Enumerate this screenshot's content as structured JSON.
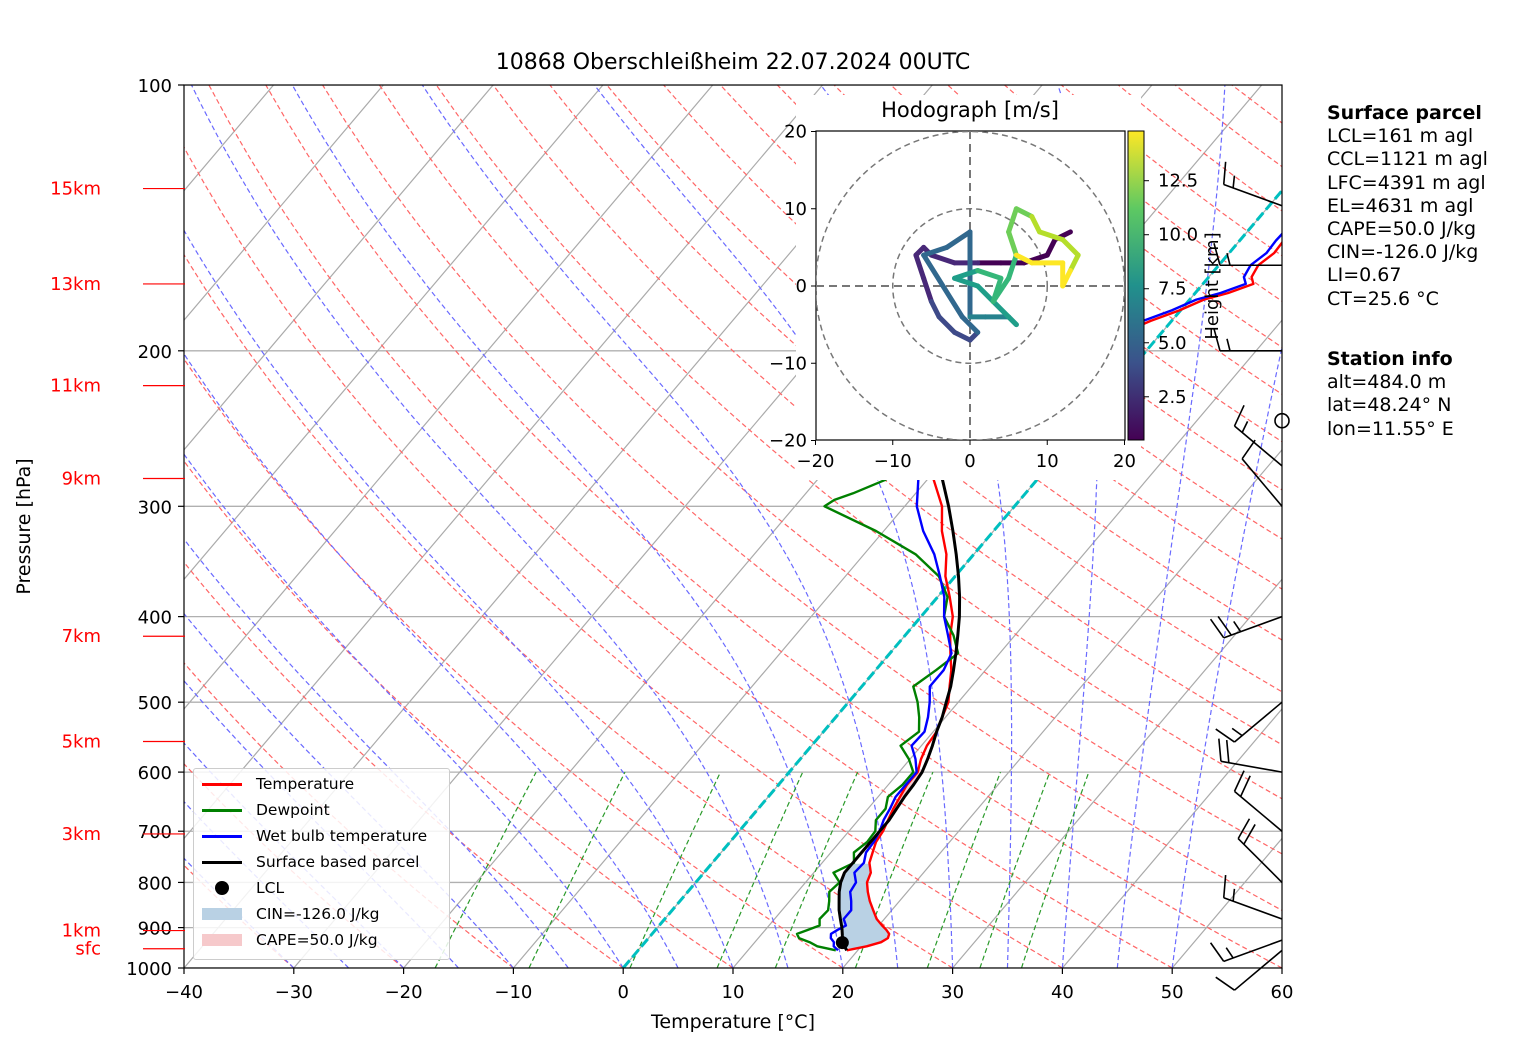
{
  "title": "10868 Oberschleißheim 22.07.2024 00UTC",
  "chart_data": [
    {
      "type": "line",
      "name": "skew-T log-p diagram",
      "xlabel": "Temperature [°C]",
      "ylabel": "Pressure [hPa]",
      "xlim": [
        -40,
        60
      ],
      "ylim": [
        1000,
        100
      ],
      "y_scale": "log",
      "x_ticks": [
        -40,
        -30,
        -20,
        -10,
        0,
        10,
        20,
        30,
        40,
        50,
        60
      ],
      "y_ticks": [
        1000,
        900,
        800,
        700,
        600,
        500,
        400,
        300,
        200,
        100
      ],
      "height_labels": [
        {
          "label": "15km",
          "p": 131
        },
        {
          "label": "13km",
          "p": 168
        },
        {
          "label": "11km",
          "p": 219
        },
        {
          "label": "9km",
          "p": 279
        },
        {
          "label": "7km",
          "p": 421
        },
        {
          "label": "5km",
          "p": 554
        },
        {
          "label": "3km",
          "p": 705
        },
        {
          "label": "1km",
          "p": 907
        },
        {
          "label": "sfc",
          "p": 951
        }
      ],
      "series": [
        {
          "name": "Temperature",
          "color": "#ff0000",
          "p": [
            955,
            945,
            935,
            925,
            915,
            905,
            895,
            880,
            860,
            840,
            820,
            800,
            780,
            760,
            740,
            720,
            700,
            680,
            660,
            640,
            620,
            600,
            580,
            560,
            540,
            520,
            500,
            480,
            460,
            440,
            420,
            400,
            380,
            360,
            340,
            320,
            300,
            280,
            260,
            240,
            226,
            220,
            214,
            210,
            205,
            200,
            195,
            190,
            185,
            180,
            175,
            172,
            168,
            165,
            160,
            155,
            150,
            145,
            140,
            136,
            133,
            130
          ],
          "t": [
            19.0,
            20.5,
            21.5,
            21.8,
            21.6,
            21.0,
            20.3,
            19.3,
            18.3,
            17.3,
            16.4,
            15.6,
            15.2,
            14.3,
            13.8,
            13.3,
            13.1,
            12.7,
            12.3,
            12.0,
            11.7,
            11.7,
            11.0,
            10.5,
            10.3,
            9.7,
            9.1,
            8.0,
            6.9,
            5.5,
            4.1,
            2.9,
            1.1,
            -0.9,
            -2.5,
            -4.7,
            -6.6,
            -9.4,
            -12.4,
            -14.9,
            -16.5,
            -9.7,
            -8.8,
            -7.9,
            -6.4,
            -5.6,
            -4.1,
            -3.3,
            -1.9,
            -0.1,
            1.3,
            3.0,
            4.6,
            3.9,
            3.6,
            4.1,
            4.0,
            4.1,
            4.6,
            5.1,
            6.5,
            7.6
          ]
        },
        {
          "name": "Dewpoint",
          "color": "#008000",
          "p": [
            955,
            945,
            935,
            925,
            915,
            905,
            895,
            880,
            860,
            840,
            820,
            800,
            780,
            760,
            740,
            720,
            700,
            680,
            660,
            640,
            620,
            600,
            580,
            560,
            540,
            520,
            500,
            480,
            460,
            440,
            420,
            400,
            380,
            360,
            340,
            320,
            300,
            295,
            290,
            280,
            270,
            260,
            250,
            240,
            230,
            220,
            214,
            210,
            205,
            200,
            195,
            190,
            185,
            180,
            175,
            170,
            168,
            165,
            160,
            155,
            150,
            145,
            140,
            135,
            130
          ],
          "t": [
            18.0,
            16.0,
            15.0,
            13.7,
            13.2,
            13.9,
            14.6,
            14.1,
            14.2,
            13.6,
            12.9,
            13.1,
            11.8,
            12.9,
            12.1,
            12.5,
            12.4,
            11.6,
            11.6,
            10.9,
            11.3,
            11.3,
            9.9,
            8.1,
            8.7,
            7.6,
            6.3,
            4.7,
            5.5,
            6.2,
            4.4,
            2.1,
            0.9,
            -1.5,
            -5.3,
            -10.7,
            -17.3,
            -16.9,
            -15.7,
            -13.8,
            -12.9,
            -13.5,
            -13.7,
            -14.3,
            -14.1,
            -15.1,
            -16.9,
            -17.7,
            -24.7,
            -20.8,
            -21.3,
            -20.5,
            -19.3,
            -23.3,
            -21.4,
            -30.1,
            -29.2,
            -30.1,
            -31.2,
            -29.6,
            -29.8,
            -28.8,
            -27.2,
            -26.5,
            -25.4
          ]
        },
        {
          "name": "Wet bulb temperature",
          "color": "#0000ff",
          "p": [
            955,
            945,
            935,
            925,
            915,
            905,
            895,
            880,
            860,
            840,
            820,
            800,
            780,
            760,
            740,
            720,
            700,
            680,
            660,
            640,
            620,
            600,
            580,
            560,
            540,
            520,
            500,
            480,
            460,
            440,
            420,
            400,
            380,
            360,
            340,
            320,
            300,
            280,
            260,
            240,
            226,
            220,
            214,
            210,
            205,
            200,
            195,
            190,
            185,
            180,
            175,
            172,
            168,
            165,
            160,
            155,
            150,
            145,
            140,
            136,
            133,
            130
          ],
          "t": [
            18.2,
            17.5,
            17.2,
            16.6,
            16.3,
            16.6,
            17.0,
            16.3,
            16.3,
            15.6,
            14.8,
            14.6,
            13.7,
            13.8,
            13.2,
            13.1,
            12.8,
            12.3,
            12.0,
            11.6,
            11.6,
            11.6,
            10.5,
            9.1,
            9.2,
            8.4,
            7.4,
            6.2,
            6.2,
            5.6,
            3.9,
            2.1,
            0.6,
            -1.4,
            -3.6,
            -6.4,
            -8.9,
            -10.8,
            -13.0,
            -15.3,
            -16.7,
            -10.3,
            -9.4,
            -8.6,
            -7.1,
            -6.3,
            -4.8,
            -4.0,
            -2.6,
            -0.8,
            0.6,
            2.3,
            3.9,
            3.2,
            2.9,
            3.4,
            3.3,
            3.4,
            3.9,
            4.4,
            5.8,
            6.9
          ]
        },
        {
          "name": "Surface based parcel",
          "color": "#000000",
          "p": [
            955,
            940,
            920,
            900,
            880,
            860,
            840,
            820,
            800,
            780,
            760,
            740,
            720,
            700,
            680,
            660,
            640,
            620,
            600,
            580,
            560,
            540,
            520,
            500,
            480,
            460,
            440,
            420,
            400,
            380,
            360,
            340,
            320,
            300,
            280,
            260,
            240,
            220,
            200,
            180,
            160,
            140,
            130
          ],
          "t": [
            19.0,
            18.2,
            17.5,
            16.8,
            16.0,
            15.2,
            14.5,
            13.8,
            13.2,
            12.8,
            12.8,
            12.8,
            12.8,
            12.8,
            12.8,
            12.6,
            12.4,
            12.3,
            12.1,
            11.6,
            11.0,
            10.3,
            9.7,
            8.9,
            8.1,
            7.1,
            6.0,
            4.8,
            3.5,
            2.0,
            0.3,
            -1.6,
            -3.7,
            -6.0,
            -8.6,
            -11.6,
            -15.0,
            -18.9,
            -23.0,
            -27.5,
            -32.5,
            -37.5,
            -40.0
          ]
        }
      ],
      "lcl": {
        "name": "LCL",
        "p": 936,
        "t": 18.0
      },
      "cin": {
        "label": "CIN=-126.0 J/kg",
        "value": -126.0
      },
      "cape": {
        "label": "CAPE=50.0 J/kg",
        "value": 50.0
      },
      "zero_isotherm_color": "#00bfbf",
      "winds": [
        {
          "p": 955,
          "speed_kt": 10,
          "dir": 230
        },
        {
          "p": 930,
          "speed_kt": 15,
          "dir": 250
        },
        {
          "p": 880,
          "speed_kt": 15,
          "dir": 290
        },
        {
          "p": 800,
          "speed_kt": 20,
          "dir": 315
        },
        {
          "p": 700,
          "speed_kt": 20,
          "dir": 310
        },
        {
          "p": 600,
          "speed_kt": 20,
          "dir": 280
        },
        {
          "p": 500,
          "speed_kt": 15,
          "dir": 230
        },
        {
          "p": 400,
          "speed_kt": 25,
          "dir": 250
        },
        {
          "p": 300,
          "speed_kt": 10,
          "dir": 320
        },
        {
          "p": 270,
          "speed_kt": 15,
          "dir": 310
        },
        {
          "p": 240,
          "speed_kt": 0,
          "dir": 0
        },
        {
          "p": 200,
          "speed_kt": 15,
          "dir": 270
        },
        {
          "p": 160,
          "speed_kt": 15,
          "dir": 270
        },
        {
          "p": 137,
          "speed_kt": 15,
          "dir": 290
        }
      ]
    },
    {
      "type": "line",
      "name": "hodograph",
      "title": "Hodograph [m/s]",
      "xlim": [
        -20,
        20
      ],
      "ylim": [
        -20,
        20
      ],
      "x_ticks": [
        -20,
        -10,
        0,
        10,
        20
      ],
      "y_ticks": [
        -20,
        -10,
        0,
        10,
        20
      ],
      "rings": [
        10,
        20
      ],
      "colorbar": {
        "label": "Height [km]",
        "ticks": [
          2.5,
          5.0,
          7.5,
          10.0,
          12.5
        ],
        "range": [
          0.5,
          14.8
        ]
      },
      "points": [
        {
          "u": 13.0,
          "v": 7.0,
          "h": 0.5
        },
        {
          "u": 11.0,
          "v": 6.0,
          "h": 0.8
        },
        {
          "u": 10.0,
          "v": 4.0,
          "h": 1.0
        },
        {
          "u": 7.0,
          "v": 3.0,
          "h": 1.3
        },
        {
          "u": 4.0,
          "v": 3.0,
          "h": 1.6
        },
        {
          "u": 1.0,
          "v": 3.0,
          "h": 1.9
        },
        {
          "u": -2.0,
          "v": 3.0,
          "h": 2.2
        },
        {
          "u": -5.0,
          "v": 4.0,
          "h": 2.5
        },
        {
          "u": -6.0,
          "v": 5.0,
          "h": 2.7
        },
        {
          "u": -7.0,
          "v": 4.0,
          "h": 2.9
        },
        {
          "u": -6.0,
          "v": 1.0,
          "h": 3.2
        },
        {
          "u": -5.0,
          "v": -2.0,
          "h": 3.5
        },
        {
          "u": -4.0,
          "v": -4.0,
          "h": 3.8
        },
        {
          "u": -2.0,
          "v": -6.0,
          "h": 4.1
        },
        {
          "u": 0.0,
          "v": -7.0,
          "h": 4.4
        },
        {
          "u": 1.0,
          "v": -6.0,
          "h": 4.7
        },
        {
          "u": -1.0,
          "v": -4.0,
          "h": 5.0
        },
        {
          "u": -6.0,
          "v": 4.0,
          "h": 5.3
        },
        {
          "u": -3.0,
          "v": 5.0,
          "h": 5.6
        },
        {
          "u": 0.0,
          "v": 7.0,
          "h": 5.9
        },
        {
          "u": 0.0,
          "v": -4.0,
          "h": 6.3
        },
        {
          "u": 2.0,
          "v": -4.0,
          "h": 6.7
        },
        {
          "u": 5.0,
          "v": -4.0,
          "h": 7.1
        },
        {
          "u": 6.0,
          "v": -5.0,
          "h": 7.5
        },
        {
          "u": 3.0,
          "v": -2.0,
          "h": 7.9
        },
        {
          "u": 1.0,
          "v": 0.0,
          "h": 8.3
        },
        {
          "u": -2.0,
          "v": 1.0,
          "h": 8.7
        },
        {
          "u": 1.0,
          "v": 2.0,
          "h": 9.1
        },
        {
          "u": 4.0,
          "v": 1.0,
          "h": 9.5
        },
        {
          "u": 3.0,
          "v": -2.0,
          "h": 9.9
        },
        {
          "u": 5.0,
          "v": 1.0,
          "h": 10.3
        },
        {
          "u": 6.0,
          "v": 4.0,
          "h": 10.7
        },
        {
          "u": 5.0,
          "v": 7.0,
          "h": 11.1
        },
        {
          "u": 6.0,
          "v": 10.0,
          "h": 11.5
        },
        {
          "u": 8.0,
          "v": 9.0,
          "h": 11.9
        },
        {
          "u": 9.0,
          "v": 7.0,
          "h": 12.3
        },
        {
          "u": 12.0,
          "v": 6.0,
          "h": 12.7
        },
        {
          "u": 14.0,
          "v": 4.0,
          "h": 13.1
        },
        {
          "u": 13.0,
          "v": 2.0,
          "h": 13.5
        },
        {
          "u": 12.0,
          "v": 0.0,
          "h": 13.9
        },
        {
          "u": 12.0,
          "v": 3.0,
          "h": 14.2
        },
        {
          "u": 8.0,
          "v": 3.0,
          "h": 14.5
        },
        {
          "u": 6.0,
          "v": 4.0,
          "h": 14.8
        }
      ]
    }
  ],
  "surface_parcel": {
    "heading": "Surface parcel",
    "lines": [
      "LCL=161 m agl",
      "CCL=1121 m agl",
      "LFC=4391 m agl",
      "EL=4631 m agl",
      "CAPE=50.0 J/kg",
      "CIN=-126.0 J/kg",
      "LI=0.67",
      "CT=25.6 °C"
    ]
  },
  "station_info": {
    "heading": "Station info",
    "lines": [
      "alt=484.0 m",
      "lat=48.24° N",
      "lon=11.55° E"
    ]
  },
  "legend": {
    "items": [
      {
        "label": "Temperature",
        "kind": "line",
        "color": "#ff0000"
      },
      {
        "label": "Dewpoint",
        "kind": "line",
        "color": "#008000"
      },
      {
        "label": "Wet bulb temperature",
        "kind": "line",
        "color": "#0000ff"
      },
      {
        "label": "Surface based parcel",
        "kind": "line",
        "color": "#000000"
      },
      {
        "label": "LCL",
        "kind": "dot",
        "color": "#000000"
      },
      {
        "label": "CIN=-126.0 J/kg",
        "kind": "patch",
        "color": "#b9d1e4"
      },
      {
        "label": "CAPE=50.0 J/kg",
        "kind": "patch",
        "color": "#f6c9cb"
      }
    ]
  }
}
